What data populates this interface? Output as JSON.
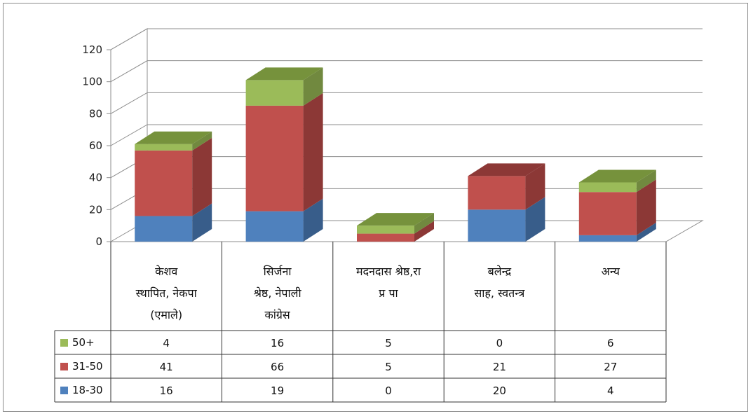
{
  "chart_data": {
    "type": "bar",
    "stacked": true,
    "three_d": true,
    "ylim": [
      0,
      120
    ],
    "yticks": [
      0,
      20,
      40,
      60,
      80,
      100,
      120
    ],
    "grid": true,
    "data_table": true,
    "categories": [
      [
        "केशव",
        "स्थापित, नेकपा",
        "(एमाले)"
      ],
      [
        "सिर्जना",
        "श्रेष्ठ, नेपाली",
        "कांग्रेस"
      ],
      [
        "मदनदास श्रेष्ठ,रा",
        "प्र पा"
      ],
      [
        "बलेन्द्र",
        "साह, स्वतन्त्र"
      ],
      [
        "अन्य"
      ]
    ],
    "series": [
      {
        "name": "18-30",
        "color": "#4f81bd",
        "side": "#385d8a",
        "values": [
          16,
          19,
          0,
          20,
          4
        ]
      },
      {
        "name": "31-50",
        "color": "#c0504d",
        "side": "#8c3836",
        "values": [
          41,
          66,
          5,
          21,
          27
        ]
      },
      {
        "name": "50+",
        "color": "#9bbb59",
        "side": "#71893f",
        "values": [
          4,
          16,
          5,
          0,
          6
        ]
      }
    ],
    "table_order": [
      2,
      1,
      0
    ]
  }
}
